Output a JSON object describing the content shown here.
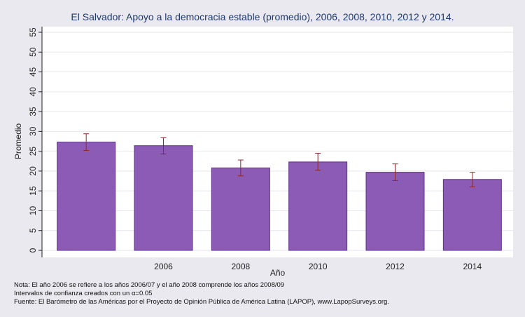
{
  "chart_data": {
    "type": "bar",
    "title": "El Salvador: Apoyo a la democracia estable (promedio), 2006, 2008, 2010, 2012 y 2014.",
    "xlabel": "Año",
    "ylabel": "Promedio",
    "categories": [
      "",
      "2006",
      "2008",
      "2010",
      "2012",
      "2014"
    ],
    "values": [
      27.3,
      26.4,
      20.8,
      22.3,
      19.7,
      17.9
    ],
    "error_low": [
      25.2,
      24.3,
      18.8,
      20.2,
      17.6,
      16.0
    ],
    "error_high": [
      29.4,
      28.4,
      22.8,
      24.5,
      21.8,
      19.7
    ],
    "ylim": [
      0,
      55
    ],
    "yticks": [
      0,
      5,
      10,
      15,
      20,
      25,
      30,
      35,
      40,
      45,
      50,
      55
    ],
    "grid": true,
    "colors": {
      "bar": "#8c5bb6",
      "bar_edge": "#5c2f86",
      "error": "#8b2a2a",
      "plot_bg": "#ffffff",
      "grid": "#e6e6ee"
    }
  },
  "notes": {
    "line1": "Nota: El año 2006 se refiere a los años 2006/07 y el año 2008 comprende los años 2008/09",
    "line2": "Intervalos de confianza creados con un α=0.05",
    "line3": "Fuente: El Barómetro de las Américas por el Proyecto de Opinión Pública de América Latina (LAPOP), www.LapopSurveys.org."
  }
}
